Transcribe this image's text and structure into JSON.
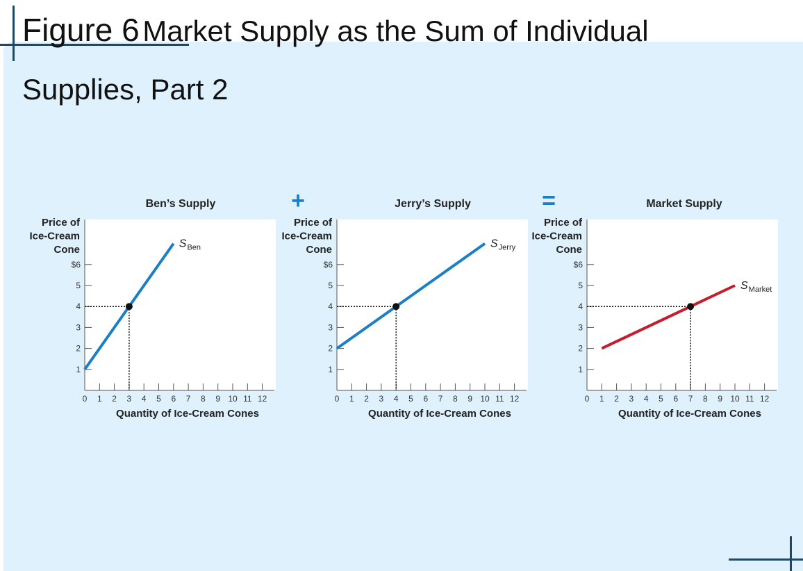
{
  "figure": {
    "number": "Figure 6",
    "title": "Market Supply as the Sum of Individual",
    "title_line2": "Supplies, Part 2"
  },
  "operators": {
    "plus": "+",
    "equals": "="
  },
  "colors": {
    "individual": "#1a7fc4",
    "market": "#c41e2e",
    "background": "#dff1fc",
    "frame": "#1e4866"
  },
  "chart_data": [
    {
      "type": "line",
      "title": "Ben’s Supply",
      "ylabel": [
        "Price of",
        "Ice-Cream",
        "Cone"
      ],
      "xlabel": "Quantity of Ice-Cream Cones",
      "x_ticks": [
        0,
        1,
        2,
        3,
        4,
        5,
        6,
        7,
        8,
        9,
        10,
        11,
        12
      ],
      "y_ticks": [
        "1",
        "2",
        "3",
        "4",
        "5",
        "$6"
      ],
      "xlim": [
        0,
        12.5
      ],
      "ylim": [
        0,
        7.6
      ],
      "series": [
        {
          "name": "S",
          "subscript": "Ben",
          "color": "#1a7fc4",
          "x": [
            0,
            6
          ],
          "y": [
            1,
            7
          ]
        }
      ],
      "highlight": {
        "x": 3,
        "y": 4
      }
    },
    {
      "type": "line",
      "title": "Jerry’s Supply",
      "ylabel": [
        "Price of",
        "Ice-Cream",
        "Cone"
      ],
      "xlabel": "Quantity of Ice-Cream Cones",
      "x_ticks": [
        0,
        1,
        2,
        3,
        4,
        5,
        6,
        7,
        8,
        9,
        10,
        11,
        12
      ],
      "y_ticks": [
        "1",
        "2",
        "3",
        "4",
        "5",
        "$6"
      ],
      "xlim": [
        0,
        12.5
      ],
      "ylim": [
        0,
        7.6
      ],
      "series": [
        {
          "name": "S",
          "subscript": "Jerry",
          "color": "#1a7fc4",
          "x": [
            0,
            10
          ],
          "y": [
            2,
            7
          ]
        }
      ],
      "highlight": {
        "x": 4,
        "y": 4
      }
    },
    {
      "type": "line",
      "title": "Market Supply",
      "ylabel": [
        "Price of",
        "Ice-Cream",
        "Cone"
      ],
      "xlabel": "Quantity of Ice-Cream Cones",
      "x_ticks": [
        0,
        1,
        2,
        3,
        4,
        5,
        6,
        7,
        8,
        9,
        10,
        11,
        12
      ],
      "y_ticks": [
        "1",
        "2",
        "3",
        "4",
        "5",
        "$6"
      ],
      "xlim": [
        0,
        12.5
      ],
      "ylim": [
        0,
        7.6
      ],
      "series": [
        {
          "name": "S",
          "subscript": "Market",
          "color": "#c41e2e",
          "x": [
            1,
            10
          ],
          "y": [
            2,
            5
          ]
        }
      ],
      "highlight": {
        "x": 7,
        "y": 4
      }
    }
  ]
}
